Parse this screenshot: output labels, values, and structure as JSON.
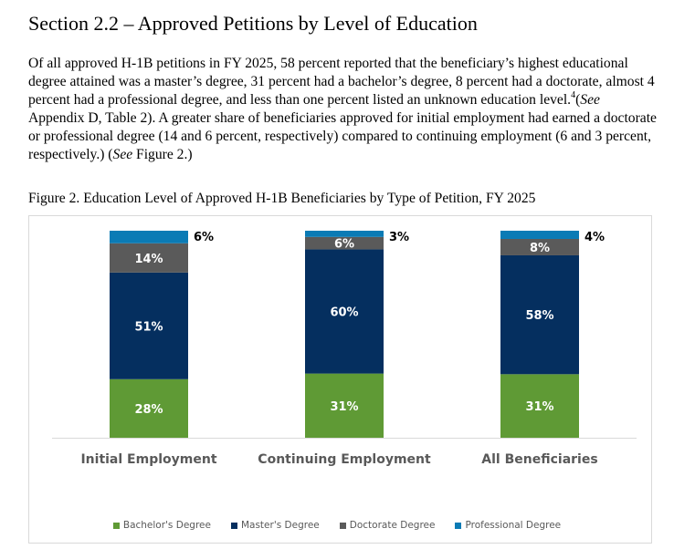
{
  "section": {
    "heading": "Section 2.2 – Approved Petitions by Level of Education",
    "para_1": "Of all approved H-1B petitions in FY 2025, 58 percent reported that the beneficiary’s highest educational degree attained was a master’s degree, 31 percent had a bachelor’s degree, 8 percent had a doctorate, almost 4 percent had a professional degree, and less than one percent listed an unknown education level.",
    "footnote_mark": "4",
    "para_2a": "(",
    "para_2_see": "See",
    "para_2b": " Appendix D, Table 2).  A greater share of beneficiaries approved for initial employment had earned a doctorate or professional degree (14 and 6 percent, respectively) compared to continuing employment (6 and 3 percent, respectively.)  (",
    "para_2_see2": "See",
    "para_2c": " Figure 2.)",
    "figure_caption": "Figure 2. Education Level of Approved H-1B Beneficiaries by Type of Petition, FY 2025"
  },
  "chart_data": {
    "type": "bar",
    "stacked": true,
    "percent_axis": true,
    "categories": [
      "Initial Employment",
      "Continuing Employment",
      "All Beneficiaries"
    ],
    "series": [
      {
        "name": "Bachelor's Degree",
        "values": [
          28,
          31,
          31
        ],
        "labels": [
          "28%",
          "31%",
          "31%"
        ],
        "color": "#5f9a35"
      },
      {
        "name": "Master's Degree",
        "values": [
          51,
          60,
          58
        ],
        "labels": [
          "51%",
          "60%",
          "58%"
        ],
        "color": "#052f5f"
      },
      {
        "name": "Doctorate Degree",
        "values": [
          14,
          6,
          8
        ],
        "labels": [
          "14%",
          "6%",
          "8%"
        ],
        "color": "#5a5a5a"
      },
      {
        "name": "Professional Degree",
        "values": [
          6,
          3,
          4
        ],
        "labels": [
          "6%",
          "3%",
          "4%"
        ],
        "color": "#0b7bb5"
      }
    ],
    "ylim": [
      0,
      100
    ],
    "grid": false,
    "legend_position": "bottom",
    "title": "",
    "xlabel": "",
    "ylabel": ""
  }
}
